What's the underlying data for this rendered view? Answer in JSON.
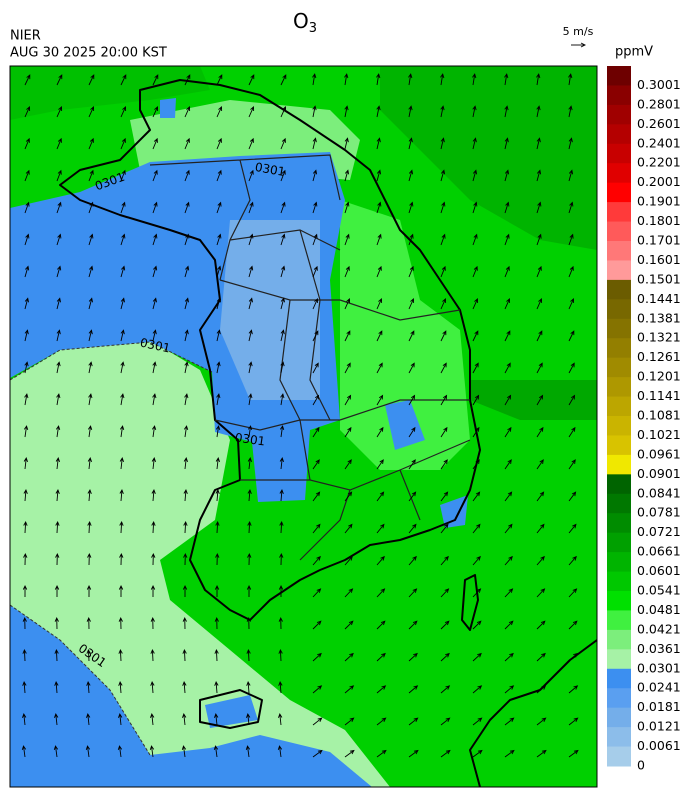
{
  "title": {
    "main": "O",
    "sub": "3"
  },
  "header": {
    "agency": "NIER",
    "datetime": "AUG 30 2025 20:00 KST"
  },
  "wind_scale": {
    "label": "5 m/s"
  },
  "contours": {
    "labels": [
      "0301",
      "0301",
      "0301",
      "0301",
      "0301"
    ]
  },
  "colorbar": {
    "unit": "ppmV",
    "levels": [
      {
        "label": "0.3001",
        "color": "#6e0000"
      },
      {
        "label": "0.2801",
        "color": "#8a0000"
      },
      {
        "label": "0.2601",
        "color": "#a00000"
      },
      {
        "label": "0.2401",
        "color": "#b40000"
      },
      {
        "label": "0.2201",
        "color": "#c80000"
      },
      {
        "label": "0.2001",
        "color": "#e00000"
      },
      {
        "label": "0.1901",
        "color": "#ff0000"
      },
      {
        "label": "0.1801",
        "color": "#ff3a3a"
      },
      {
        "label": "0.1701",
        "color": "#ff5a5a"
      },
      {
        "label": "0.1601",
        "color": "#ff7878"
      },
      {
        "label": "0.1501",
        "color": "#ff9a9a"
      },
      {
        "label": "0.1441",
        "color": "#6b5c00"
      },
      {
        "label": "0.1381",
        "color": "#786800"
      },
      {
        "label": "0.1321",
        "color": "#857300"
      },
      {
        "label": "0.1261",
        "color": "#937f00"
      },
      {
        "label": "0.1201",
        "color": "#a08b00"
      },
      {
        "label": "0.1141",
        "color": "#ae9800"
      },
      {
        "label": "0.1081",
        "color": "#bca600"
      },
      {
        "label": "0.1021",
        "color": "#cab400"
      },
      {
        "label": "0.0961",
        "color": "#d8c300"
      },
      {
        "label": "0.0901",
        "color": "#f0e800"
      },
      {
        "label": "0.0841",
        "color": "#006400"
      },
      {
        "label": "0.0781",
        "color": "#007800"
      },
      {
        "label": "0.0721",
        "color": "#008c00"
      },
      {
        "label": "0.0661",
        "color": "#00a000"
      },
      {
        "label": "0.0601",
        "color": "#00b400"
      },
      {
        "label": "0.0541",
        "color": "#00c800"
      },
      {
        "label": "0.0481",
        "color": "#00e000"
      },
      {
        "label": "0.0421",
        "color": "#40f040"
      },
      {
        "label": "0.0361",
        "color": "#7cee7c"
      },
      {
        "label": "0.0301",
        "color": "#a6f2a6"
      },
      {
        "label": "0.0241",
        "color": "#3c8ff0"
      },
      {
        "label": "0.0181",
        "color": "#5a9ff0"
      },
      {
        "label": "0.0121",
        "color": "#74aeea"
      },
      {
        "label": "0.0061",
        "color": "#8cbdea"
      },
      {
        "label": "0",
        "color": "#a6cdea"
      }
    ]
  }
}
